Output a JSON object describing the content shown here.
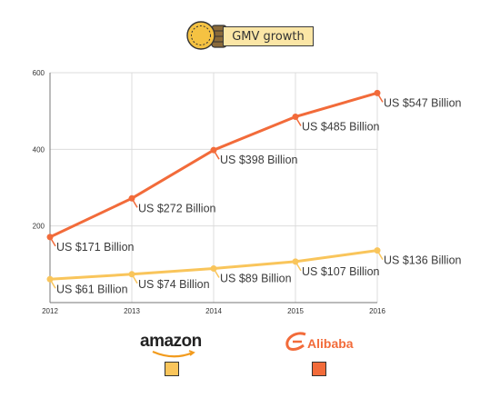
{
  "header": {
    "title": "GMV growth"
  },
  "legend": {
    "items": [
      {
        "label": "amazon",
        "color": "#f9c55b"
      },
      {
        "label": "Alibaba",
        "color": "#f26b3a"
      }
    ]
  },
  "chart_data": {
    "type": "line",
    "x": [
      "2012",
      "2013",
      "2014",
      "2015",
      "2016"
    ],
    "ylim": [
      0,
      600
    ],
    "yticks": [
      "200",
      "400",
      "600"
    ],
    "grid": true,
    "series": [
      {
        "name": "Alibaba",
        "color": "#f26b3a",
        "values": [
          171,
          272,
          398,
          485,
          547
        ],
        "labels": [
          "US $171 Billion",
          "US $272 Billion",
          "US $398 Billion",
          "US $485 Billion",
          "US $547 Billion"
        ]
      },
      {
        "name": "amazon",
        "color": "#f9c55b",
        "values": [
          61,
          74,
          89,
          107,
          136
        ],
        "labels": [
          "US $61 Billion",
          "US $74 Billion",
          "US $89 Billion",
          "US $107 Billion",
          "US $136 Billion"
        ]
      }
    ]
  }
}
